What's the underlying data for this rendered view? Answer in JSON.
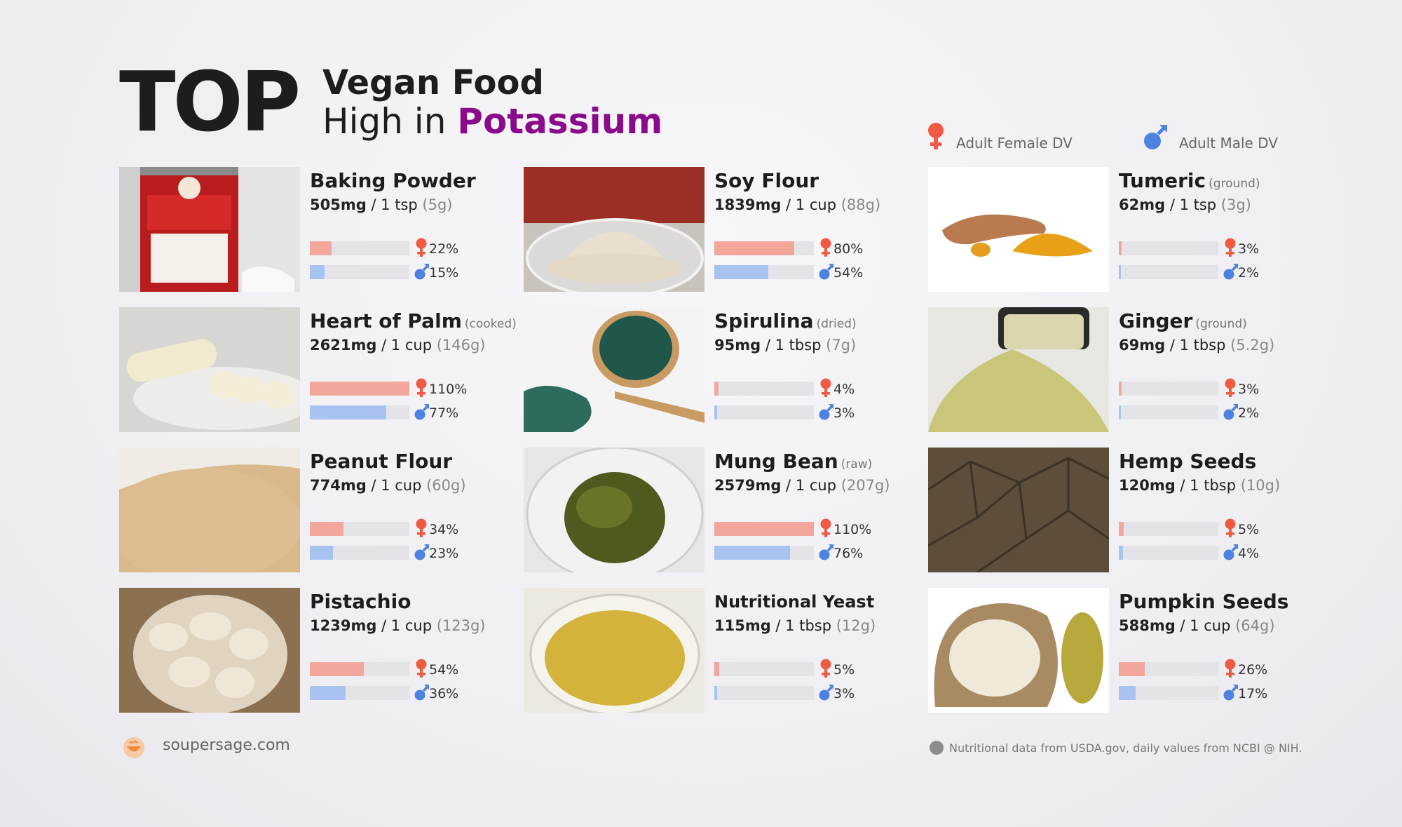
{
  "header": {
    "top_word": "TOP",
    "title_line1": "Vegan Food",
    "title_line2_prefix": "High in ",
    "title_accent": "Potassium"
  },
  "legend": {
    "female_label": "Adult Female DV",
    "male_label": "Adult Male DV"
  },
  "colors": {
    "accent_purple": "#8a0a8c",
    "female_bar": "#f3a69b",
    "male_bar": "#a9c3f1",
    "female_icon": "#ef5a43",
    "male_icon": "#4d82e0",
    "track": "#e4e4e8"
  },
  "foods": [
    {
      "name": "Baking Powder",
      "qualifier": "",
      "mg": "505mg",
      "serving": " / 1 tsp ",
      "grams": "(5g)",
      "female_pct": "22%",
      "male_pct": "15%",
      "female_value": 22,
      "male_value": 15,
      "photo": "baking-powder-can"
    },
    {
      "name": "Soy Flour",
      "qualifier": "",
      "mg": "1839mg",
      "serving": " / 1 cup ",
      "grams": "(88g)",
      "female_pct": "80%",
      "male_pct": "54%",
      "female_value": 80,
      "male_value": 54,
      "photo": "flour-in-glass-bowl"
    },
    {
      "name": "Tumeric",
      "qualifier": "(ground)",
      "mg": "62mg",
      "serving": " / 1 tsp ",
      "grams": "(3g)",
      "female_pct": "3%",
      "male_pct": "2%",
      "female_value": 3,
      "male_value": 2,
      "photo": "turmeric-root-and-powder"
    },
    {
      "name": "Heart of Palm",
      "qualifier": "(cooked)",
      "mg": "2621mg",
      "serving": " / 1 cup ",
      "grams": "(146g)",
      "female_pct": "110%",
      "male_pct": "77%",
      "female_value": 110,
      "male_value": 77,
      "photo": "heart-of-palm-slices"
    },
    {
      "name": "Spirulina",
      "qualifier": "(dried)",
      "mg": "95mg",
      "serving": " / 1 tbsp ",
      "grams": "(7g)",
      "female_pct": "4%",
      "male_pct": "3%",
      "female_value": 4,
      "male_value": 3,
      "photo": "spirulina-on-spoon"
    },
    {
      "name": "Ginger",
      "qualifier": "(ground)",
      "mg": "69mg",
      "serving": " / 1 tbsp ",
      "grams": "(5.2g)",
      "female_pct": "3%",
      "male_pct": "2%",
      "female_value": 3,
      "male_value": 2,
      "photo": "ginger-powder-and-jar"
    },
    {
      "name": "Peanut Flour",
      "qualifier": "",
      "mg": "774mg",
      "serving": " / 1 cup ",
      "grams": "(60g)",
      "female_pct": "34%",
      "male_pct": "23%",
      "female_value": 34,
      "male_value": 23,
      "photo": "peanut-flour-pile"
    },
    {
      "name": "Mung Bean",
      "qualifier": "(raw)",
      "mg": "2579mg",
      "serving": " / 1 cup ",
      "grams": "(207g)",
      "female_pct": "110%",
      "male_pct": "76%",
      "female_value": 110,
      "male_value": 76,
      "photo": "mung-beans-in-bowl"
    },
    {
      "name": "Hemp Seeds",
      "qualifier": "",
      "mg": "120mg",
      "serving": " / 1 tbsp ",
      "grams": "(10g)",
      "female_pct": "5%",
      "male_pct": "4%",
      "female_value": 5,
      "male_value": 4,
      "photo": "hemp-seeds-texture"
    },
    {
      "name": "Pistachio",
      "qualifier": "",
      "mg": "1239mg",
      "serving": " / 1 cup ",
      "grams": "(123g)",
      "female_pct": "54%",
      "male_pct": "36%",
      "female_value": 54,
      "male_value": 36,
      "photo": "pistachios-in-sack"
    },
    {
      "name": "Nutritional Yeast",
      "qualifier": "",
      "mg": "115mg",
      "serving": " / 1 tbsp ",
      "grams": "(12g)",
      "female_pct": "5%",
      "male_pct": "3%",
      "female_value": 5,
      "male_value": 3,
      "photo": "nutritional-yeast-bowl"
    },
    {
      "name": "Pumpkin Seeds",
      "qualifier": "",
      "mg": "588mg",
      "serving": " / 1 cup ",
      "grams": "(64g)",
      "female_pct": "26%",
      "male_pct": "17%",
      "female_value": 26,
      "male_value": 17,
      "photo": "pumpkin-seeds-sack"
    }
  ],
  "footer": {
    "site": "soupersage.com",
    "note": "Nutritional data from USDA.gov, daily values from NCBI @ NIH."
  }
}
